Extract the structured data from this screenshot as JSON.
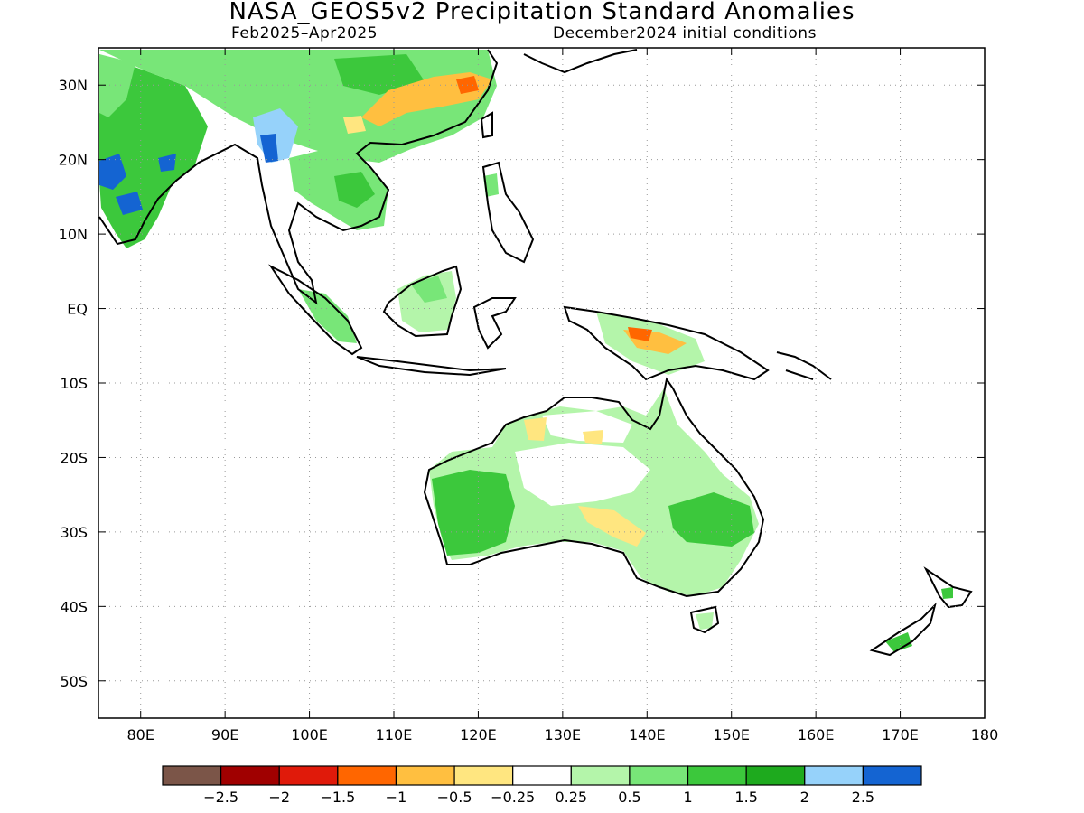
{
  "title": "NASA_GEOS5v2 Precipitation Standard Anomalies",
  "period": "Feb2025–Apr2025",
  "init": "December2024 initial conditions",
  "map": {
    "lon_range": [
      75,
      180
    ],
    "lat_range": [
      -55,
      35
    ],
    "lat_ticks": [
      {
        "v": 30,
        "label": "30N"
      },
      {
        "v": 20,
        "label": "20N"
      },
      {
        "v": 10,
        "label": "10N"
      },
      {
        "v": 0,
        "label": "EQ"
      },
      {
        "v": -10,
        "label": "10S"
      },
      {
        "v": -20,
        "label": "20S"
      },
      {
        "v": -30,
        "label": "30S"
      },
      {
        "v": -40,
        "label": "40S"
      },
      {
        "v": -50,
        "label": "50S"
      }
    ],
    "lon_ticks": [
      {
        "v": 80,
        "label": "80E"
      },
      {
        "v": 90,
        "label": "90E"
      },
      {
        "v": 100,
        "label": "100E"
      },
      {
        "v": 110,
        "label": "110E"
      },
      {
        "v": 120,
        "label": "120E"
      },
      {
        "v": 130,
        "label": "130E"
      },
      {
        "v": 140,
        "label": "140E"
      },
      {
        "v": 150,
        "label": "150E"
      },
      {
        "v": 160,
        "label": "160E"
      },
      {
        "v": 170,
        "label": "170E"
      },
      {
        "v": 180,
        "label": "180"
      }
    ],
    "grid": "dotted"
  },
  "colorbar": {
    "colors": [
      "#7b5548",
      "#a00000",
      "#e01a0a",
      "#ff6600",
      "#ffbf40",
      "#ffe680",
      "#ffffff",
      "#b4f5aa",
      "#78e678",
      "#3cc83c",
      "#1eaa1e",
      "#96d2fa",
      "#1464d2"
    ],
    "labels": [
      "−2.5",
      "−2",
      "−1.5",
      "−1",
      "−0.5",
      "−0.25",
      "0.25",
      "0.5",
      "1",
      "1.5",
      "2",
      "2.5"
    ]
  }
}
